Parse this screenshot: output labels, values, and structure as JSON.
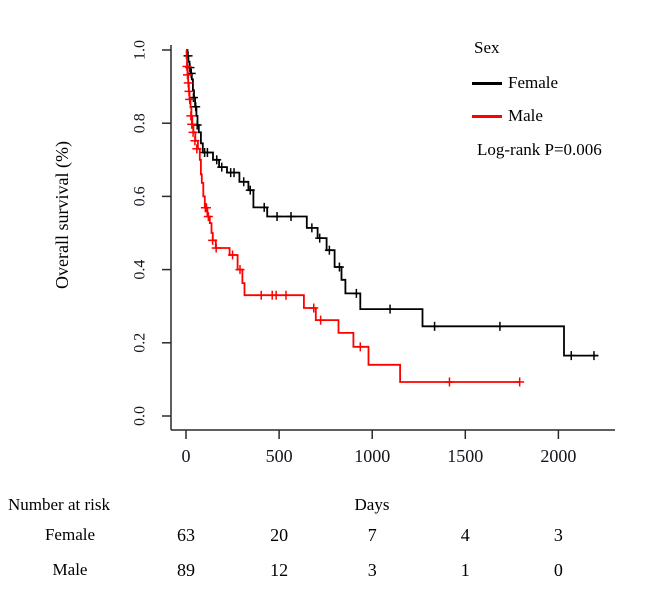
{
  "figure": {
    "background": "#ffffff"
  },
  "chart_data": {
    "type": "line",
    "subtype": "kaplan-meier-step",
    "title": "",
    "xlabel": "Days",
    "ylabel": "Overall survival (%)",
    "xlim": [
      0,
      2300
    ],
    "ylim": [
      0.0,
      1.0
    ],
    "xticks": [
      0,
      500,
      1000,
      1500,
      2000
    ],
    "yticks": [
      "0.0",
      "0.2",
      "0.4",
      "0.6",
      "0.8",
      "1.0"
    ],
    "grid": false,
    "axis_color": "#2a2a2a",
    "tick_label_color": "#15151f",
    "legend": {
      "title": "Sex",
      "position": "top-right",
      "entries": [
        {
          "label": "Female",
          "color": "#000000"
        },
        {
          "label": "Male",
          "color": "#ff0000"
        }
      ]
    },
    "annotation": "Log-rank P=0.006",
    "series": [
      {
        "name": "Female",
        "color": "#000000",
        "end_day": 2213,
        "steps": [
          [
            0,
            1.0
          ],
          [
            8,
            0.984
          ],
          [
            13,
            0.968
          ],
          [
            19,
            0.952
          ],
          [
            25,
            0.936
          ],
          [
            31,
            0.92
          ],
          [
            37,
            0.89
          ],
          [
            43,
            0.87
          ],
          [
            49,
            0.845
          ],
          [
            56,
            0.82
          ],
          [
            62,
            0.795
          ],
          [
            69,
            0.775
          ],
          [
            80,
            0.745
          ],
          [
            90,
            0.72
          ],
          [
            145,
            0.7
          ],
          [
            178,
            0.68
          ],
          [
            220,
            0.665
          ],
          [
            287,
            0.64
          ],
          [
            335,
            0.617
          ],
          [
            362,
            0.57
          ],
          [
            436,
            0.545
          ],
          [
            649,
            0.514
          ],
          [
            707,
            0.486
          ],
          [
            755,
            0.453
          ],
          [
            798,
            0.407
          ],
          [
            835,
            0.372
          ],
          [
            856,
            0.335
          ],
          [
            936,
            0.292
          ],
          [
            1270,
            0.245
          ],
          [
            2030,
            0.165
          ]
        ],
        "censors": [
          [
            11,
            0.984
          ],
          [
            21,
            0.952
          ],
          [
            28,
            0.936
          ],
          [
            40,
            0.87
          ],
          [
            52,
            0.845
          ],
          [
            60,
            0.795
          ],
          [
            100,
            0.72
          ],
          [
            115,
            0.72
          ],
          [
            165,
            0.7
          ],
          [
            192,
            0.68
          ],
          [
            240,
            0.665
          ],
          [
            258,
            0.665
          ],
          [
            310,
            0.64
          ],
          [
            345,
            0.617
          ],
          [
            420,
            0.57
          ],
          [
            489,
            0.545
          ],
          [
            564,
            0.545
          ],
          [
            676,
            0.514
          ],
          [
            718,
            0.486
          ],
          [
            770,
            0.453
          ],
          [
            824,
            0.407
          ],
          [
            915,
            0.335
          ],
          [
            1096,
            0.292
          ],
          [
            1335,
            0.245
          ],
          [
            1686,
            0.245
          ],
          [
            2069,
            0.165
          ],
          [
            2191,
            0.165
          ]
        ]
      },
      {
        "name": "Male",
        "color": "#ff0000",
        "end_day": 1792,
        "steps": [
          [
            0,
            1.0
          ],
          [
            3,
            0.977
          ],
          [
            6,
            0.955
          ],
          [
            9,
            0.932
          ],
          [
            12,
            0.91
          ],
          [
            15,
            0.887
          ],
          [
            19,
            0.865
          ],
          [
            24,
            0.843
          ],
          [
            29,
            0.82
          ],
          [
            34,
            0.797
          ],
          [
            40,
            0.775
          ],
          [
            50,
            0.752
          ],
          [
            64,
            0.73
          ],
          [
            74,
            0.7
          ],
          [
            80,
            0.66
          ],
          [
            85,
            0.637
          ],
          [
            93,
            0.6
          ],
          [
            101,
            0.569
          ],
          [
            115,
            0.545
          ],
          [
            128,
            0.527
          ],
          [
            137,
            0.5
          ],
          [
            144,
            0.48
          ],
          [
            160,
            0.459
          ],
          [
            234,
            0.44
          ],
          [
            277,
            0.4
          ],
          [
            303,
            0.363
          ],
          [
            314,
            0.33
          ],
          [
            633,
            0.295
          ],
          [
            697,
            0.262
          ],
          [
            819,
            0.227
          ],
          [
            899,
            0.189
          ],
          [
            980,
            0.14
          ],
          [
            1150,
            0.093
          ]
        ],
        "censors": [
          [
            5,
            0.955
          ],
          [
            8,
            0.932
          ],
          [
            12,
            0.91
          ],
          [
            16,
            0.887
          ],
          [
            20,
            0.865
          ],
          [
            26,
            0.82
          ],
          [
            31,
            0.797
          ],
          [
            38,
            0.775
          ],
          [
            48,
            0.752
          ],
          [
            58,
            0.73
          ],
          [
            104,
            0.569
          ],
          [
            110,
            0.569
          ],
          [
            120,
            0.545
          ],
          [
            143,
            0.48
          ],
          [
            162,
            0.459
          ],
          [
            250,
            0.44
          ],
          [
            290,
            0.4
          ],
          [
            404,
            0.33
          ],
          [
            463,
            0.33
          ],
          [
            484,
            0.33
          ],
          [
            537,
            0.33
          ],
          [
            686,
            0.295
          ],
          [
            723,
            0.262
          ],
          [
            936,
            0.189
          ],
          [
            1415,
            0.093
          ],
          [
            1792,
            0.093
          ]
        ]
      }
    ]
  },
  "risk_table": {
    "header": "Number at risk",
    "time_points": [
      0,
      500,
      1000,
      1500,
      2000
    ],
    "rows": [
      {
        "label": "Female",
        "counts": [
          63,
          20,
          7,
          4,
          3
        ]
      },
      {
        "label": "Male",
        "counts": [
          89,
          12,
          3,
          1,
          0
        ]
      }
    ]
  }
}
